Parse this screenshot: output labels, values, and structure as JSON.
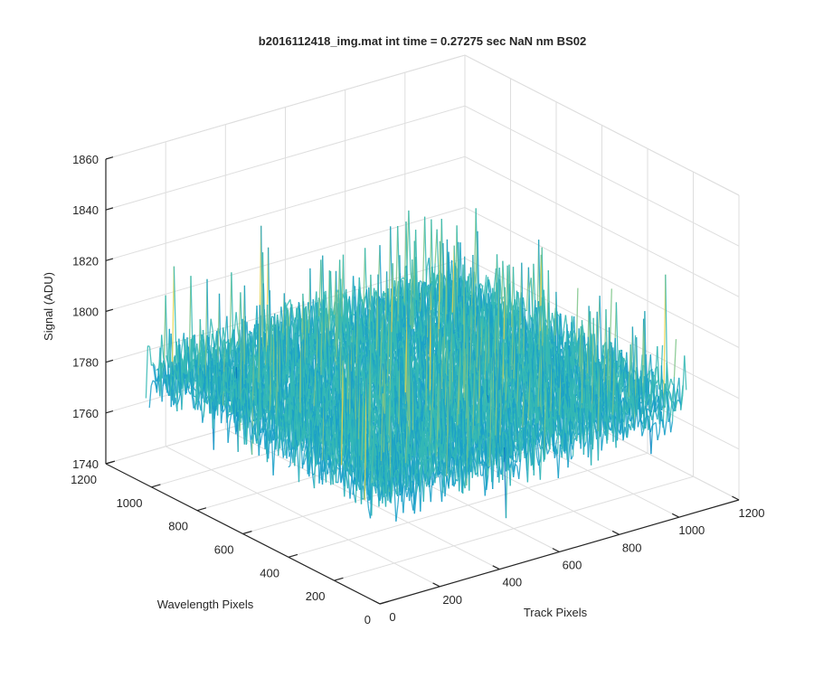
{
  "chart_data": {
    "type": "surface3d",
    "title": "b2016112418_img.mat int time = 0.27275 sec  NaN nm BS02",
    "xlabel": "Track Pixels",
    "ylabel": "Wavelength Pixels",
    "zlabel": "Signal (ADU)",
    "xlim": [
      0,
      1200
    ],
    "ylim": [
      0,
      1200
    ],
    "zlim": [
      1740,
      1860
    ],
    "x_ticks": [
      "0",
      "200",
      "400",
      "600",
      "800",
      "1000",
      "1200"
    ],
    "y_ticks": [
      "0",
      "200",
      "400",
      "600",
      "800",
      "1000",
      "1200"
    ],
    "z_ticks": [
      "1740",
      "1760",
      "1780",
      "1800",
      "1820",
      "1840",
      "1860"
    ],
    "surface_extent": {
      "x": [
        0,
        1024
      ],
      "y": [
        0,
        1024
      ]
    },
    "signal_mean": 1785,
    "signal_range": [
      1745,
      1845
    ],
    "colormap": [
      "#0072bd",
      "#1aa0c8",
      "#35b8b4",
      "#7cc487",
      "#e6d34a"
    ],
    "grid": true
  }
}
